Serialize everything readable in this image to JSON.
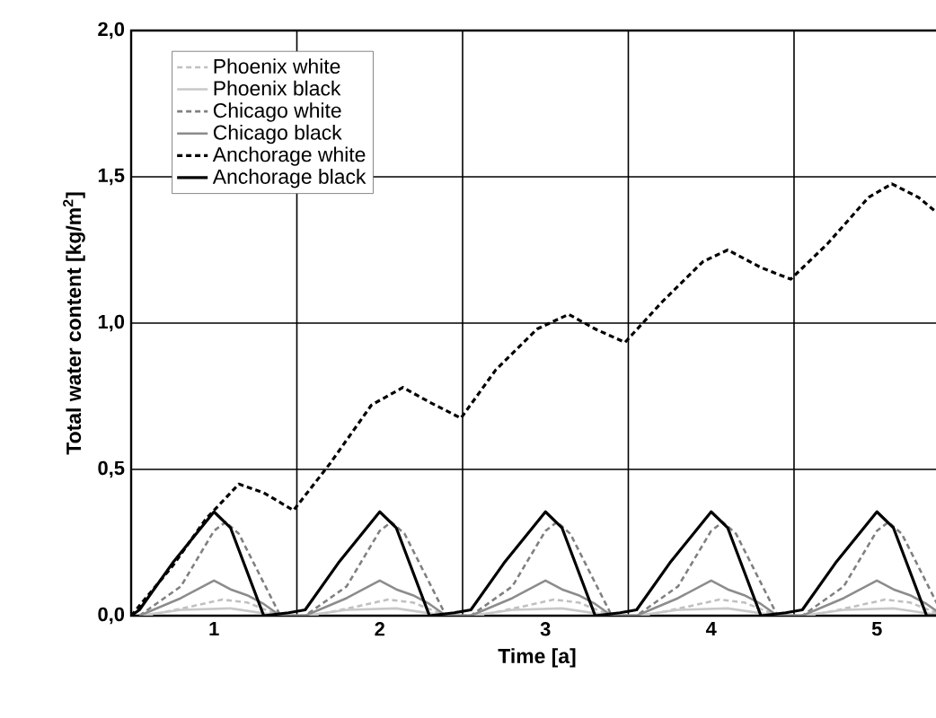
{
  "chart_data": {
    "type": "line",
    "xlabel": "Time [a]",
    "ylabel": "Total water content [kg/m$^{2}$]",
    "xlim": [
      0.5,
      5.4
    ],
    "xticks": [
      1,
      2,
      3,
      4,
      5
    ],
    "ylim": [
      0,
      2
    ],
    "yticks": [
      {
        "value": 0,
        "label": "0,0"
      },
      {
        "value": 0.5,
        "label": "0,5"
      },
      {
        "value": 1,
        "label": "1,0"
      },
      {
        "value": 1.5,
        "label": "1,5"
      },
      {
        "value": 2,
        "label": "2,0"
      }
    ],
    "grid": "y",
    "legend": "top left",
    "marker": "none",
    "ref_lines": [
      {
        "axis": "x",
        "value": 1.5,
        "color": "#000000"
      },
      {
        "axis": "x",
        "value": 2.5,
        "color": "#000000"
      },
      {
        "axis": "x",
        "value": 3.5,
        "color": "#000000"
      },
      {
        "axis": "x",
        "value": 4.5,
        "color": "#000000"
      }
    ],
    "series": [
      {
        "name": "Phoenix white",
        "color": "#c0c0c0",
        "line_style": "dashed",
        "x": [
          0.6,
          0.85,
          1.05,
          1.2,
          1.4,
          1.6,
          1.85,
          2.05,
          2.2,
          2.4,
          2.6,
          2.85,
          3.05,
          3.2,
          3.4,
          3.6,
          3.85,
          4.05,
          4.2,
          4.4,
          4.6,
          4.85,
          5.05,
          5.2,
          5.4
        ],
        "values": [
          0,
          0.03,
          0.055,
          0.045,
          0,
          0,
          0.03,
          0.055,
          0.045,
          0,
          0,
          0.03,
          0.055,
          0.045,
          0,
          0,
          0.03,
          0.055,
          0.045,
          0,
          0,
          0.03,
          0.055,
          0.045,
          0
        ]
      },
      {
        "name": "Phoenix black",
        "color": "#c8c8c8",
        "line_style": "solid",
        "x": [
          0.55,
          0.8,
          1.1,
          1.4,
          1.55,
          1.8,
          2.1,
          2.4,
          2.55,
          2.8,
          3.1,
          3.4,
          3.55,
          3.8,
          4.1,
          4.4,
          4.55,
          4.8,
          5.1,
          5.4
        ],
        "values": [
          0,
          0.02,
          0.025,
          0,
          0,
          0.02,
          0.025,
          0,
          0,
          0.02,
          0.025,
          0,
          0,
          0.02,
          0.025,
          0,
          0,
          0.02,
          0.025,
          0
        ]
      },
      {
        "name": "Chicago white",
        "color": "#808080",
        "line_style": "dashed",
        "x": [
          0.55,
          0.8,
          1.0,
          1.07,
          1.15,
          1.4,
          1.55,
          1.8,
          2.0,
          2.07,
          2.15,
          2.4,
          2.55,
          2.8,
          3.0,
          3.07,
          3.15,
          3.4,
          3.55,
          3.8,
          4.0,
          4.07,
          4.15,
          4.4,
          4.55,
          4.8,
          5.0,
          5.07,
          5.15,
          5.4
        ],
        "values": [
          0,
          0.1,
          0.29,
          0.32,
          0.28,
          0,
          0,
          0.1,
          0.29,
          0.32,
          0.28,
          0,
          0,
          0.1,
          0.29,
          0.32,
          0.28,
          0,
          0,
          0.1,
          0.29,
          0.32,
          0.28,
          0,
          0,
          0.1,
          0.29,
          0.32,
          0.28,
          0
        ]
      },
      {
        "name": "Chicago black",
        "color": "#8c8c8c",
        "line_style": "solid",
        "x": [
          0.55,
          0.8,
          1.0,
          1.1,
          1.2,
          1.3,
          1.4,
          1.55,
          1.8,
          2.0,
          2.1,
          2.2,
          2.3,
          2.4,
          2.55,
          2.8,
          3.0,
          3.1,
          3.2,
          3.3,
          3.4,
          3.55,
          3.8,
          4.0,
          4.1,
          4.2,
          4.3,
          4.4,
          4.55,
          4.8,
          5.0,
          5.1,
          5.2,
          5.3,
          5.4
        ],
        "values": [
          0,
          0.06,
          0.12,
          0.09,
          0.07,
          0.04,
          0,
          0,
          0.06,
          0.12,
          0.09,
          0.07,
          0.04,
          0,
          0,
          0.06,
          0.12,
          0.09,
          0.07,
          0.04,
          0,
          0,
          0.06,
          0.12,
          0.09,
          0.07,
          0.04,
          0,
          0,
          0.06,
          0.12,
          0.09,
          0.07,
          0.04,
          0
        ]
      },
      {
        "name": "Anchorage white",
        "color": "#000000",
        "line_style": "dashed",
        "x": [
          0.5,
          0.75,
          0.95,
          1.15,
          1.3,
          1.48,
          1.7,
          1.95,
          2.14,
          2.3,
          2.49,
          2.7,
          2.95,
          3.14,
          3.3,
          3.48,
          3.7,
          3.95,
          4.1,
          4.3,
          4.48,
          4.7,
          4.95,
          5.09,
          5.25,
          5.4
        ],
        "values": [
          0,
          0.17,
          0.33,
          0.45,
          0.42,
          0.36,
          0.52,
          0.72,
          0.78,
          0.73,
          0.675,
          0.84,
          0.98,
          1.03,
          0.98,
          0.934,
          1.07,
          1.21,
          1.25,
          1.19,
          1.15,
          1.27,
          1.43,
          1.476,
          1.43,
          1.36
        ]
      },
      {
        "name": "Anchorage black",
        "color": "#000000",
        "line_style": "solid",
        "x": [
          0.5,
          0.55,
          0.75,
          1.0,
          1.1,
          1.3,
          1.45,
          1.55,
          1.75,
          2.0,
          2.1,
          2.3,
          2.45,
          2.55,
          2.75,
          3.0,
          3.1,
          3.3,
          3.45,
          3.55,
          3.75,
          4.0,
          4.1,
          4.3,
          4.45,
          4.55,
          4.75,
          5.0,
          5.1,
          5.3,
          5.4
        ],
        "values": [
          0,
          0.02,
          0.18,
          0.355,
          0.3,
          0,
          0.01,
          0.02,
          0.18,
          0.355,
          0.3,
          0,
          0.01,
          0.02,
          0.18,
          0.355,
          0.3,
          0,
          0.01,
          0.02,
          0.18,
          0.355,
          0.3,
          0,
          0.01,
          0.02,
          0.18,
          0.355,
          0.3,
          0,
          0
        ]
      }
    ]
  }
}
